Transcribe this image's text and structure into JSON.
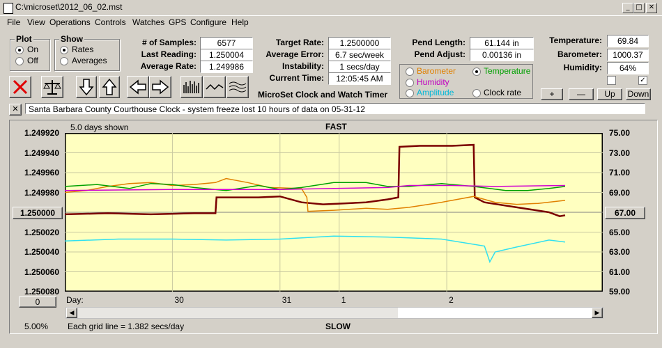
{
  "window": {
    "title": "C:\\microset\\2012_06_02.mst",
    "min": "_",
    "max": "□",
    "close": "✕"
  },
  "menu": [
    "File",
    "View",
    "Operations",
    "Controls",
    "Watches",
    "GPS",
    "Configure",
    "Help"
  ],
  "plot_group": {
    "title": "Plot",
    "options": [
      "On",
      "Off"
    ],
    "selected": "On"
  },
  "show_group": {
    "title": "Show",
    "options": [
      "Rates",
      "Averages"
    ],
    "selected": "Rates"
  },
  "stats": {
    "samples_label": "# of Samples:",
    "samples": "6577",
    "last_label": "Last Reading:",
    "last": "1.250004",
    "avg_label": "Average Rate:",
    "avg": "1.249986"
  },
  "rates": {
    "target_label": "Target Rate:",
    "target": "1.2500000",
    "error_label": "Average Error:",
    "error": "6.7 sec/week",
    "instab_label": "Instability:",
    "instab": "1 secs/day",
    "time_label": "Current Time:",
    "time": "12:05:45 AM",
    "app_name": "MicroSet Clock and Watch Timer"
  },
  "pend": {
    "length_label": "Pend Length:",
    "length": "61.144 in",
    "adjust_label": "Pend Adjust:",
    "adjust": "0.00136 in"
  },
  "env": {
    "temp_label": "Temperature:",
    "temp": "69.84",
    "baro_label": "Barometer:",
    "baro": "1000.37",
    "hum_label": "Humidity:",
    "hum": "64%"
  },
  "series_select": {
    "barometer": "Barometer",
    "temperature": "Temperature",
    "humidity": "Humidity",
    "amplitude": "Amplitude",
    "clockrate": "Clock rate",
    "selected": "Temperature",
    "colors": {
      "barometer": "#e08000",
      "temperature": "#00a000",
      "humidity": "#d000d0",
      "amplitude": "#00c0e0",
      "clockrate": "#000000"
    }
  },
  "scale_buttons": {
    "plus": "+",
    "minus": "—",
    "up": "Up",
    "down": "Down"
  },
  "toolbar_icons": [
    "close-icon",
    "balance-icon",
    "arrow-down-icon",
    "arrow-up-icon",
    "arrow-left-icon",
    "arrow-right-icon",
    "bars-icon",
    "wave-icon",
    "multi-wave-icon"
  ],
  "note": {
    "close": "✕",
    "text": "Santa Barbara County Courthouse Clock - system freeze lost 10 hours of data on 05-31-12"
  },
  "graph": {
    "days_shown": "5.0 days shown",
    "top_label": "FAST",
    "bottom_label": "SLOW",
    "grid_note": "Each grid line = 1.382 secs/day",
    "percent": "5.00%",
    "left_button": "1.250000",
    "right_button": "67.00",
    "zero_button": "0",
    "day_prefix": "Day:",
    "day_labels": [
      "30",
      "31",
      "1",
      "2"
    ]
  },
  "chart_data": {
    "type": "line",
    "left_axis": {
      "ticks": [
        "1.249920",
        "1.249940",
        "1.249960",
        "1.249980",
        "1.250000",
        "1.250020",
        "1.250040",
        "1.250060",
        "1.250080"
      ],
      "inverted": true
    },
    "right_axis": {
      "ticks": [
        "75.00",
        "73.00",
        "71.00",
        "69.00",
        "67.00",
        "65.00",
        "63.00",
        "61.00",
        "59.00"
      ]
    },
    "x_range_days": [
      0,
      5.0
    ],
    "day_markers": [
      1.0,
      2.0,
      2.55,
      3.55
    ],
    "series": [
      {
        "key": "clockrate",
        "color": "#7a0000",
        "axis": "left",
        "x": [
          0,
          0.4,
          0.8,
          1.2,
          1.4,
          1.41,
          1.8,
          2.0,
          2.2,
          2.4,
          2.6,
          2.8,
          3.0,
          3.1,
          3.11,
          3.3,
          3.6,
          3.8,
          3.81,
          3.9,
          4.2,
          4.5,
          4.6,
          4.65
        ],
        "y": [
          1.250002,
          1.250001,
          1.250002,
          1.250001,
          1.250001,
          1.249985,
          1.249985,
          1.249984,
          1.24999,
          1.249992,
          1.249991,
          1.24999,
          1.249987,
          1.249985,
          1.249934,
          1.249933,
          1.249933,
          1.249932,
          1.249985,
          1.24999,
          1.249995,
          1.25,
          1.250004,
          1.250003
        ]
      },
      {
        "key": "barometer",
        "color": "#e08000",
        "axis": "left",
        "x": [
          0,
          0.2,
          0.4,
          0.6,
          0.8,
          1.0,
          1.2,
          1.4,
          1.5,
          1.7,
          1.9,
          2.2,
          2.25,
          2.26,
          2.5,
          2.8,
          3.0,
          3.2,
          3.5,
          3.8,
          4.0,
          4.2,
          4.4,
          4.65
        ],
        "y": [
          1.24998,
          1.249978,
          1.249974,
          1.249971,
          1.24997,
          1.249973,
          1.249972,
          1.24997,
          1.249966,
          1.24997,
          1.249975,
          1.249976,
          1.249985,
          1.249999,
          1.249998,
          1.249996,
          1.249997,
          1.249995,
          1.24999,
          1.249984,
          1.24999,
          1.249992,
          1.249991,
          1.249988
        ]
      },
      {
        "key": "temperature",
        "color": "#00a000",
        "axis": "left",
        "x": [
          0,
          0.3,
          0.6,
          0.8,
          1.0,
          1.2,
          1.5,
          1.8,
          2.0,
          2.2,
          2.5,
          2.8,
          3.0,
          3.2,
          3.5,
          3.8,
          4.1,
          4.3,
          4.5,
          4.65
        ],
        "y": [
          1.249974,
          1.249972,
          1.249976,
          1.249971,
          1.249972,
          1.249975,
          1.249978,
          1.249973,
          1.249977,
          1.249975,
          1.24997,
          1.24997,
          1.249974,
          1.249974,
          1.249971,
          1.249974,
          1.249978,
          1.249978,
          1.249976,
          1.249974
        ]
      },
      {
        "key": "humidity",
        "color": "#d000d0",
        "axis": "left",
        "x": [
          0,
          1.0,
          2.0,
          2.5,
          3.0,
          3.2,
          3.6,
          4.0,
          4.65
        ],
        "y": [
          1.249978,
          1.249977,
          1.249977,
          1.249976,
          1.249975,
          1.249973,
          1.249973,
          1.249974,
          1.249973
        ]
      },
      {
        "key": "amplitude",
        "color": "#30e0f0",
        "axis": "left",
        "x": [
          0,
          0.5,
          1.0,
          1.5,
          2.0,
          2.5,
          3.0,
          3.5,
          3.9,
          3.95,
          4.0,
          4.2,
          4.5,
          4.65
        ],
        "y": [
          1.250029,
          1.250027,
          1.250027,
          1.250028,
          1.250027,
          1.250024,
          1.250025,
          1.250027,
          1.250034,
          1.25005,
          1.25004,
          1.250035,
          1.250028,
          1.25003
        ]
      }
    ]
  }
}
